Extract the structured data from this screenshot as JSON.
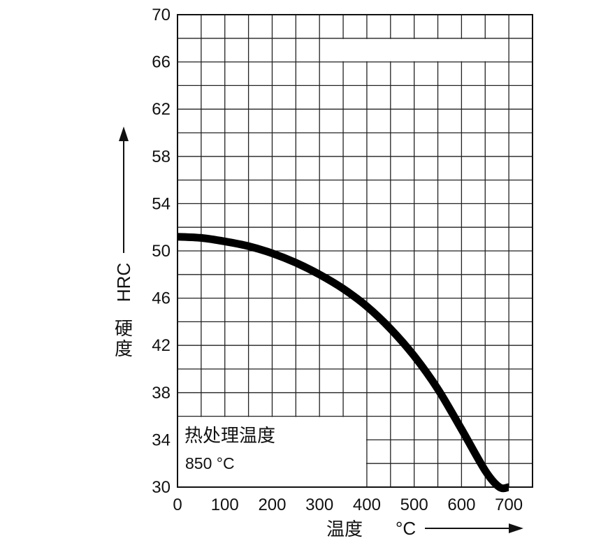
{
  "chart_data": {
    "type": "line",
    "x_ticks": [
      "0",
      "100",
      "200",
      "300",
      "400",
      "500",
      "600",
      "700"
    ],
    "y_ticks": [
      "30",
      "34",
      "38",
      "42",
      "46",
      "50",
      "54",
      "58",
      "62",
      "66",
      "70"
    ],
    "xlim": [
      0,
      750
    ],
    "ylim": [
      30,
      70
    ],
    "grid": true,
    "xlabel_text": "温度",
    "xlabel_unit": "°C",
    "ylabel_text": "硬度",
    "ylabel_unit": "HRC",
    "annotation": {
      "title": "热处理温度",
      "value": "850 °C"
    },
    "series": [
      {
        "x": [
          0,
          50,
          100,
          150,
          200,
          250,
          300,
          350,
          400,
          450,
          500,
          550,
          600,
          650,
          680,
          700
        ],
        "y": [
          51.2,
          51.1,
          50.8,
          50.4,
          49.8,
          49.0,
          48.0,
          46.8,
          45.3,
          43.4,
          41.1,
          38.3,
          34.9,
          31.4,
          30.0,
          29.0
        ]
      }
    ],
    "line_color": "#000000"
  }
}
